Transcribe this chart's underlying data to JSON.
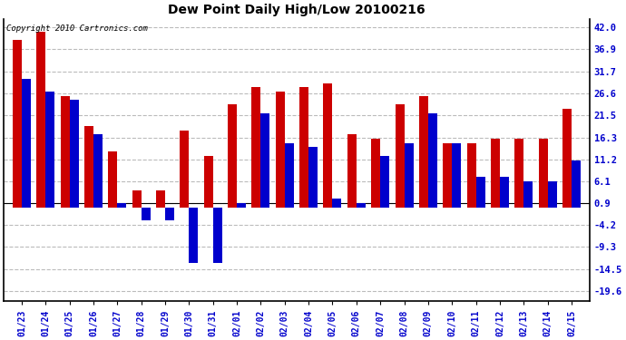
{
  "title": "Dew Point Daily High/Low 20100216",
  "copyright": "Copyright 2010 Cartronics.com",
  "labels": [
    "01/23",
    "01/24",
    "01/25",
    "01/26",
    "01/27",
    "01/28",
    "01/29",
    "01/30",
    "01/31",
    "02/01",
    "02/02",
    "02/03",
    "02/04",
    "02/05",
    "02/06",
    "02/07",
    "02/08",
    "02/09",
    "02/10",
    "02/11",
    "02/12",
    "02/13",
    "02/14",
    "02/15"
  ],
  "highs": [
    39,
    41,
    26,
    19,
    13,
    4,
    4,
    18,
    12,
    24,
    28,
    27,
    28,
    29,
    17,
    16,
    24,
    26,
    15,
    15,
    16,
    16,
    16,
    23
  ],
  "lows": [
    30,
    27,
    25,
    17,
    1,
    -3,
    -3,
    -13,
    -13,
    1,
    22,
    15,
    14,
    2,
    1,
    12,
    15,
    22,
    15,
    7,
    7,
    6,
    6,
    11
  ],
  "high_color": "#cc0000",
  "low_color": "#0000cc",
  "bg_color": "#ffffff",
  "grid_color": "#bbbbbb",
  "ytick_values": [
    42.0,
    36.9,
    31.7,
    26.6,
    21.5,
    16.3,
    11.2,
    6.1,
    0.9,
    -4.2,
    -9.3,
    -14.5,
    -19.6
  ],
  "ytick_labels": [
    "42.0",
    "36.9",
    "31.7",
    "26.6",
    "21.5",
    "16.3",
    "11.2",
    "6.1",
    "0.9",
    "-4.2",
    "-9.3",
    "-14.5",
    "-19.6"
  ],
  "ymin": -22.0,
  "ymax": 44.0,
  "bar_width": 0.38,
  "figwidth": 6.9,
  "figheight": 3.75,
  "dpi": 100
}
